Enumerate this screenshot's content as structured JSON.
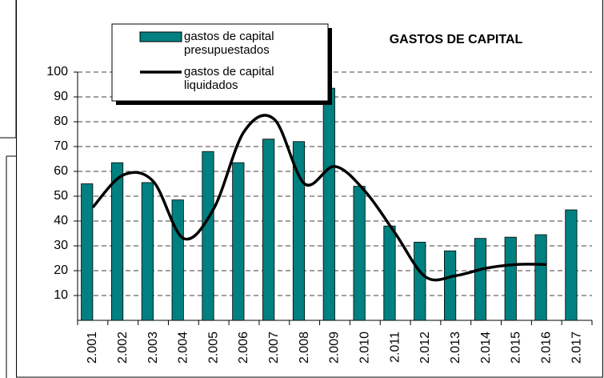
{
  "chart_data": {
    "type": "bar-line",
    "title": "GASTOS DE CAPITAL",
    "categories": [
      "2.001",
      "2.002",
      "2.003",
      "2.004",
      "2.005",
      "2.006",
      "2.007",
      "2.008",
      "2.009",
      "2.010",
      "2.011",
      "2.012",
      "2.013",
      "2.014",
      "2.015",
      "2.016",
      "2.017"
    ],
    "series": [
      {
        "name": "gastos de capital presupuestados",
        "type": "bar",
        "color": "#008080",
        "values": [
          55,
          63.5,
          55.5,
          48.5,
          68,
          63.5,
          73,
          72,
          93.5,
          54,
          38,
          31.5,
          28,
          33,
          33.5,
          34.5,
          44.5
        ]
      },
      {
        "name": "gastos de capital liquidados",
        "type": "line",
        "color": "#000000",
        "values": [
          45.5,
          58.5,
          56,
          33,
          45,
          76,
          81,
          55,
          62,
          52,
          35,
          17.5,
          18,
          21,
          22.5,
          22.5,
          null
        ]
      }
    ],
    "ylim": [
      0,
      100
    ],
    "yticks": [
      10,
      20,
      30,
      40,
      50,
      60,
      70,
      80,
      90,
      100
    ],
    "grid": true
  }
}
